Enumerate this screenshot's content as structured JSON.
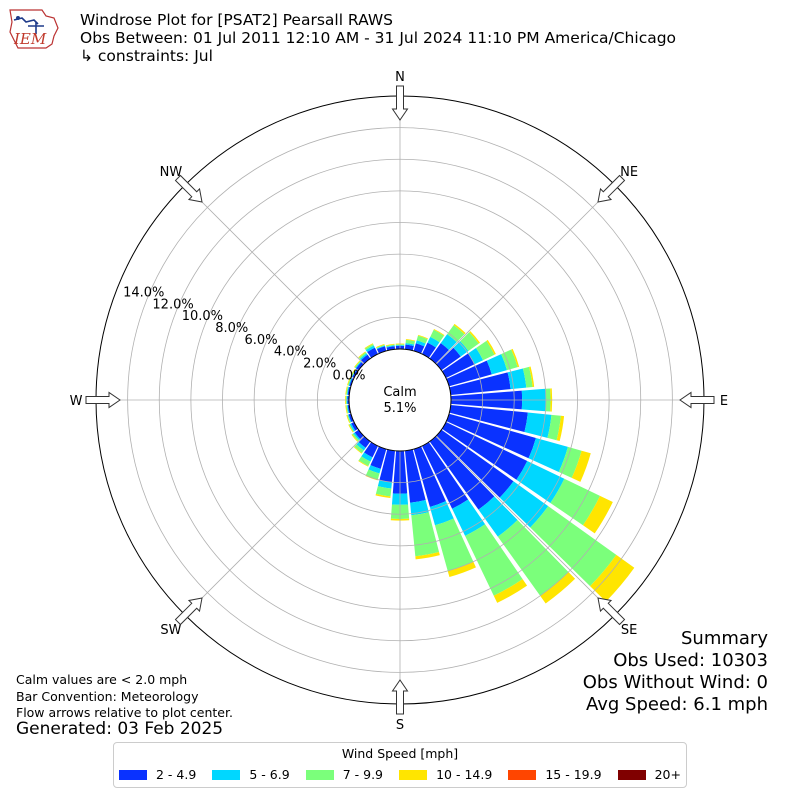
{
  "header": {
    "logo_text": "IEM",
    "title": "Windrose Plot for [PSAT2] Pearsall RAWS",
    "subtitle": "Obs Between: 01 Jul 2011 12:10 AM - 31 Jul 2024 11:10 PM America/Chicago",
    "constraints": "↳ constraints: Jul"
  },
  "notes": {
    "calm_note": "Calm values are < 2.0 mph",
    "bar_convention": "Bar Convention: Meteorology",
    "flow_arrows": "Flow arrows relative to plot center.",
    "generated": "Generated: 03 Feb 2025"
  },
  "summary": {
    "title": "Summary",
    "obs_used": "Obs Used: 10303",
    "obs_without_wind": "Obs Without Wind: 0",
    "avg_speed": "Avg Speed: 6.1 mph"
  },
  "chart_data": {
    "type": "windrose",
    "calm_label": "Calm",
    "calm_percent": "5.1%",
    "calm_value": 5.1,
    "radial_axis": {
      "min": 0,
      "max": 16,
      "step": 2,
      "tick_labels": [
        "0.0%",
        "2.0%",
        "4.0%",
        "6.0%",
        "8.0%",
        "10.0%",
        "12.0%",
        "14.0%"
      ],
      "tick_values": [
        0,
        2,
        4,
        6,
        8,
        10,
        12,
        14
      ]
    },
    "grid": true,
    "compass_labels": [
      {
        "label": "N",
        "angle": 0
      },
      {
        "label": "NE",
        "angle": 45
      },
      {
        "label": "E",
        "angle": 90
      },
      {
        "label": "SE",
        "angle": 135
      },
      {
        "label": "S",
        "angle": 180
      },
      {
        "label": "SW",
        "angle": 225
      },
      {
        "label": "W",
        "angle": 270
      },
      {
        "label": "NW",
        "angle": 315
      }
    ],
    "legend": {
      "title": "Wind Speed [mph]",
      "placement": "bottom-center",
      "bins": [
        {
          "label": "2 - 4.9",
          "color": "#0a32ff"
        },
        {
          "label": "5 - 6.9",
          "color": "#00d7ff"
        },
        {
          "label": "7 - 9.9",
          "color": "#7bff7b"
        },
        {
          "label": "10 - 14.9",
          "color": "#ffe500"
        },
        {
          "label": "15 - 19.9",
          "color": "#ff4500"
        },
        {
          "label": "20+",
          "color": "#800000"
        }
      ]
    },
    "directions": [
      0,
      10,
      20,
      30,
      40,
      50,
      60,
      70,
      80,
      90,
      100,
      110,
      120,
      130,
      140,
      150,
      160,
      170,
      180,
      190,
      200,
      210,
      220,
      230,
      240,
      250,
      260,
      270,
      280,
      290,
      300,
      310,
      320,
      330,
      340,
      350
    ],
    "cumulative_percent": [
      [
        0.2,
        0.25,
        0.3,
        0.35,
        0,
        0
      ],
      [
        0.3,
        0.4,
        0.6,
        0.65,
        0,
        0
      ],
      [
        0.5,
        0.7,
        1.0,
        1.05,
        0,
        0
      ],
      [
        0.8,
        1.2,
        1.7,
        1.75,
        0,
        0
      ],
      [
        1.2,
        1.9,
        2.6,
        2.7,
        0,
        0
      ],
      [
        1.5,
        2.1,
        2.9,
        3.0,
        0,
        0
      ],
      [
        2.0,
        2.6,
        3.4,
        3.5,
        0,
        0
      ],
      [
        2.8,
        3.8,
        4.5,
        4.6,
        0,
        0
      ],
      [
        3.8,
        4.8,
        5.2,
        5.3,
        0,
        0
      ],
      [
        4.5,
        6.0,
        6.3,
        6.4,
        0,
        0
      ],
      [
        4.9,
        6.4,
        7.0,
        7.2,
        0,
        0
      ],
      [
        5.7,
        7.8,
        8.7,
        9.3,
        0,
        0
      ],
      [
        5.7,
        8.3,
        10.8,
        11.7,
        0,
        0
      ],
      [
        5.6,
        8.3,
        13.6,
        15.0,
        0,
        0
      ],
      [
        5.3,
        7.4,
        12.0,
        12.6,
        0,
        0
      ],
      [
        4.4,
        6.3,
        10.5,
        11.0,
        0,
        0
      ],
      [
        3.8,
        5.0,
        8.0,
        8.4,
        0,
        0
      ],
      [
        3.3,
        4.1,
        6.7,
        6.9,
        0,
        0
      ],
      [
        2.7,
        3.4,
        4.3,
        4.4,
        0,
        0
      ],
      [
        2.0,
        2.4,
        2.9,
        3.0,
        0,
        0
      ],
      [
        1.3,
        1.6,
        2.0,
        2.05,
        0,
        0
      ],
      [
        0.8,
        1.1,
        1.4,
        1.45,
        0,
        0
      ],
      [
        0.5,
        0.7,
        0.9,
        0.95,
        0,
        0
      ],
      [
        0.3,
        0.4,
        0.5,
        0.55,
        0,
        0
      ],
      [
        0.2,
        0.3,
        0.35,
        0.4,
        0,
        0
      ],
      [
        0.15,
        0.2,
        0.25,
        0.3,
        0,
        0
      ],
      [
        0.1,
        0.15,
        0.2,
        0.25,
        0,
        0
      ],
      [
        0.1,
        0.15,
        0.2,
        0.25,
        0,
        0
      ],
      [
        0.1,
        0.15,
        0.2,
        0.25,
        0,
        0
      ],
      [
        0.1,
        0.15,
        0.2,
        0.25,
        0,
        0
      ],
      [
        0.12,
        0.15,
        0.2,
        0.25,
        0,
        0
      ],
      [
        0.2,
        0.25,
        0.3,
        0.35,
        0,
        0
      ],
      [
        0.3,
        0.4,
        0.5,
        0.55,
        0,
        0
      ],
      [
        0.45,
        0.6,
        0.7,
        0.75,
        0,
        0
      ],
      [
        0.3,
        0.35,
        0.4,
        0.45,
        0,
        0
      ],
      [
        0.2,
        0.25,
        0.3,
        0.35,
        0,
        0
      ]
    ]
  }
}
